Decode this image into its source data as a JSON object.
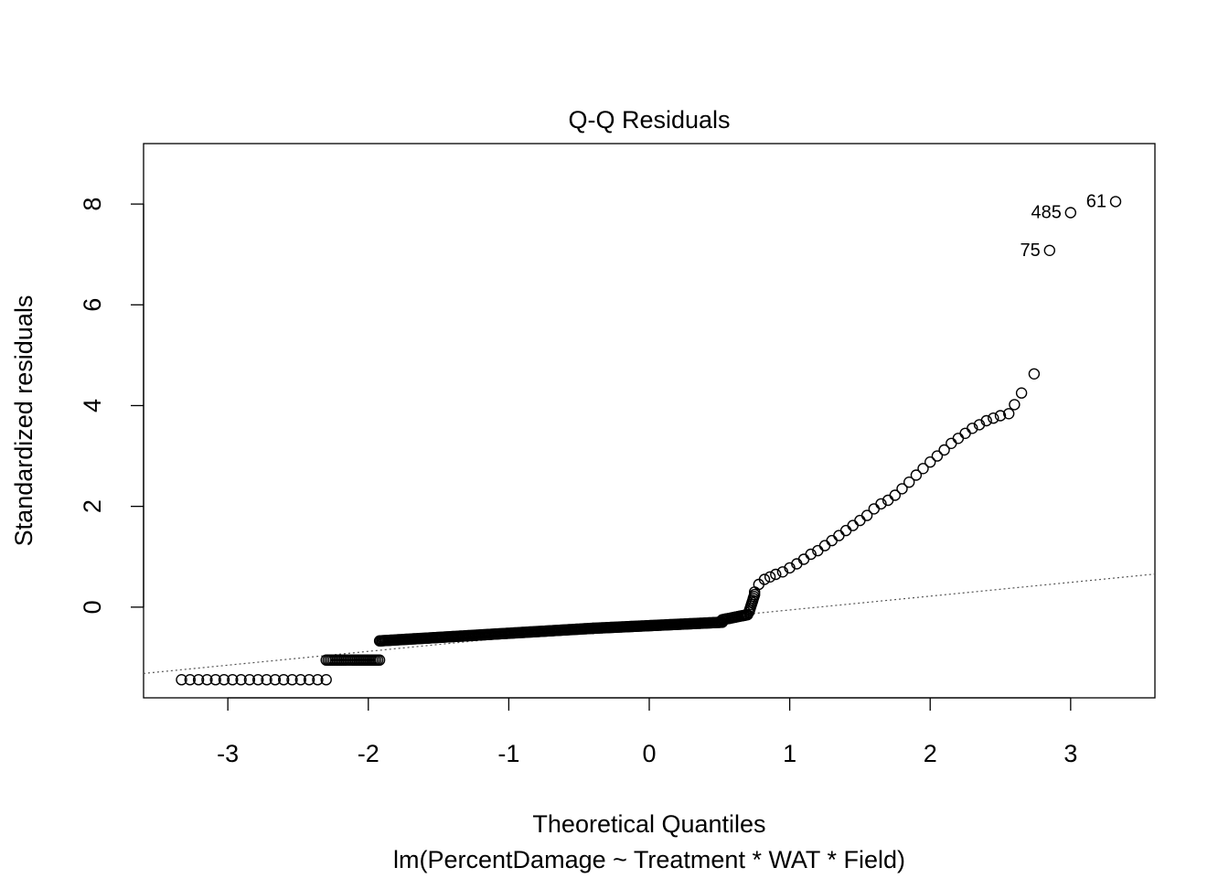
{
  "chart_data": {
    "type": "scatter",
    "title": "Q-Q Residuals",
    "xlabel": "Theoretical Quantiles",
    "subtitle": "lm(PercentDamage ~ Treatment * WAT * Field)",
    "ylabel": "Standardized residuals",
    "xlim": [
      -3.6,
      3.6
    ],
    "ylim": [
      -1.8,
      9.2
    ],
    "xticks": [
      -3,
      -2,
      -1,
      0,
      1,
      2,
      3
    ],
    "xtick_labels": [
      "-3",
      "-2",
      "-1",
      "0",
      "1",
      "2",
      "3"
    ],
    "yticks": [
      0,
      2,
      4,
      6,
      8
    ],
    "ytick_labels": [
      "0",
      "2",
      "4",
      "6",
      "8"
    ],
    "grid": false,
    "reference_line": {
      "style": "dotted",
      "slope": 0.274,
      "intercept": -0.33
    },
    "segments": [
      {
        "x0": -3.33,
        "x1": -2.3,
        "y": -1.44,
        "n": 18
      },
      {
        "x0": -2.3,
        "x1": -1.92,
        "y": -1.05,
        "n": 30
      },
      {
        "x0": -1.92,
        "x1": -0.4,
        "y0": -0.67,
        "y1": -0.42,
        "n": 170
      },
      {
        "x0": -0.4,
        "x1": 0.52,
        "y0": -0.42,
        "y1": -0.3,
        "n": 100
      },
      {
        "x0": 0.52,
        "x1": 0.7,
        "y0": -0.25,
        "y1": -0.15,
        "n": 20
      },
      {
        "x0": 0.71,
        "x1": 0.75,
        "y0": -0.1,
        "y1": 0.25,
        "n": 10
      }
    ],
    "points": [
      [
        0.75,
        0.3
      ],
      [
        0.78,
        0.45
      ],
      [
        0.82,
        0.55
      ],
      [
        0.86,
        0.6
      ],
      [
        0.9,
        0.65
      ],
      [
        0.95,
        0.7
      ],
      [
        1.0,
        0.78
      ],
      [
        1.05,
        0.86
      ],
      [
        1.1,
        0.95
      ],
      [
        1.15,
        1.05
      ],
      [
        1.2,
        1.12
      ],
      [
        1.25,
        1.22
      ],
      [
        1.3,
        1.32
      ],
      [
        1.35,
        1.42
      ],
      [
        1.4,
        1.52
      ],
      [
        1.45,
        1.62
      ],
      [
        1.5,
        1.72
      ],
      [
        1.55,
        1.82
      ],
      [
        1.6,
        1.95
      ],
      [
        1.65,
        2.05
      ],
      [
        1.7,
        2.12
      ],
      [
        1.75,
        2.22
      ],
      [
        1.8,
        2.35
      ],
      [
        1.85,
        2.48
      ],
      [
        1.9,
        2.62
      ],
      [
        1.95,
        2.75
      ],
      [
        2.0,
        2.88
      ],
      [
        2.05,
        3.0
      ],
      [
        2.1,
        3.12
      ],
      [
        2.15,
        3.25
      ],
      [
        2.2,
        3.35
      ],
      [
        2.25,
        3.45
      ],
      [
        2.3,
        3.55
      ],
      [
        2.35,
        3.62
      ],
      [
        2.4,
        3.7
      ],
      [
        2.45,
        3.75
      ],
      [
        2.5,
        3.8
      ],
      [
        2.56,
        3.84
      ],
      [
        2.6,
        4.02
      ],
      [
        2.65,
        4.25
      ],
      [
        2.74,
        4.63
      ],
      [
        2.85,
        7.08
      ],
      [
        3.0,
        7.83
      ],
      [
        3.32,
        8.05
      ]
    ],
    "labeled_points": [
      {
        "label": "61",
        "x": 3.32,
        "y": 8.05,
        "side": "left"
      },
      {
        "label": "485",
        "x": 3.0,
        "y": 7.83,
        "side": "left"
      },
      {
        "label": "75",
        "x": 2.85,
        "y": 7.08,
        "side": "left"
      }
    ]
  }
}
